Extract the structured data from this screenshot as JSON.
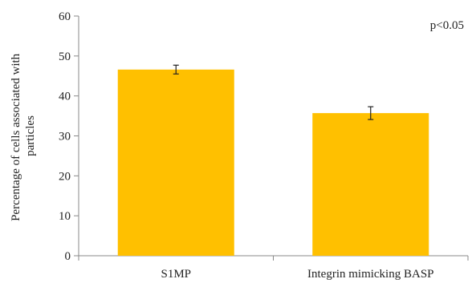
{
  "chart_data": {
    "type": "bar",
    "categories": [
      "S1MP",
      "Integrin mimicking BASP"
    ],
    "values": [
      46.6,
      35.7
    ],
    "errors": [
      1.1,
      1.6
    ],
    "ylabel_lines": [
      "Percentage of cells associated with",
      "particles"
    ],
    "annotation": "p<0.05",
    "ylim": [
      0,
      60
    ],
    "yticks": [
      "0",
      "10",
      "20",
      "30",
      "40",
      "50",
      "60"
    ],
    "grid": false,
    "bar_color": "#FFC000",
    "axis_color": "#888888",
    "error_color": "#222222"
  }
}
